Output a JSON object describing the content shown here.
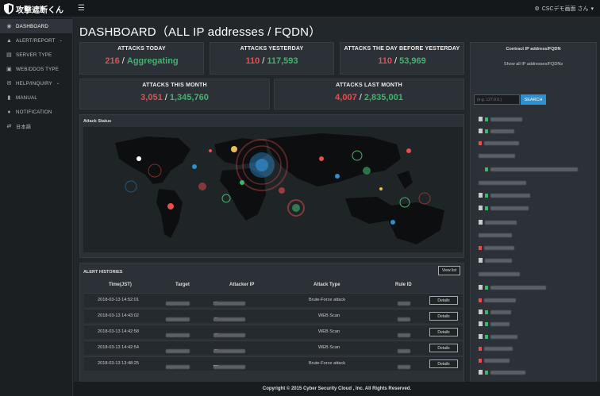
{
  "app": {
    "logo_text": "攻撃遮断くん",
    "user": "CSCデモ画面 さん"
  },
  "sidebar": {
    "items": [
      {
        "label": "DASHBOARD",
        "icon": "dashboard-icon"
      },
      {
        "label": "ALERT/REPORT",
        "icon": "alert-icon"
      },
      {
        "label": "SERVER TYPE",
        "icon": "server-icon"
      },
      {
        "label": "WEB/DDOS TYPE",
        "icon": "web-icon"
      },
      {
        "label": "HELP/INQUIRY",
        "icon": "help-icon"
      },
      {
        "label": "MANUAL",
        "icon": "manual-icon"
      },
      {
        "label": "NOTIFICATION",
        "icon": "bell-icon"
      },
      {
        "label": "日本語",
        "icon": "language-icon"
      }
    ]
  },
  "page_title": "DASHBOARD（ALL IP addresses / FQDN）",
  "stats": {
    "today": {
      "label": "ATTACKS TODAY",
      "a": "216",
      "b": "Aggregating"
    },
    "yesterday": {
      "label": "ATTACKS YESTERDAY",
      "a": "110",
      "b": "117,593"
    },
    "day_before": {
      "label": "ATTACKS THE DAY BEFORE YESTERDAY",
      "a": "110",
      "b": "53,969"
    },
    "this_month": {
      "label": "ATTACKS THIS MONTH",
      "a": "3,051",
      "b": "1,345,760"
    },
    "last_month": {
      "label": "ATTACKS LAST MONTH",
      "a": "4,007",
      "b": "2,835,001"
    }
  },
  "map": {
    "title": "Attack Status"
  },
  "alerts": {
    "title": "ALERT HISTORIES",
    "view_list": "View list",
    "columns": [
      "Time(JST)",
      "Target",
      "Attacker IP",
      "Attack Type",
      "Rule ID"
    ],
    "rows": [
      {
        "time": "2018-03-13 14:52:01",
        "target": "any",
        "type": "Brute-Force attack",
        "details": "Details"
      },
      {
        "time": "2018-03-13 14:43:02",
        "target": "any",
        "type": "WEB Scan",
        "details": "Details"
      },
      {
        "time": "2018-03-13 14:42:58",
        "target": "any",
        "type": "WEB Scan",
        "details": "Details"
      },
      {
        "time": "2018-03-13 14:42:54",
        "target": "any",
        "type": "WEB Scan",
        "details": "Details"
      },
      {
        "time": "2018-03-13 13:48:25",
        "target": "any",
        "type": "Brute-Force attack",
        "details": "Details"
      }
    ]
  },
  "contract": {
    "title": "Contract IP address/FQDN",
    "show_all": "Show all IP addresses/FQDNs",
    "placeholder": "(e.g. 127.0.0.)",
    "search": "SEARCH"
  },
  "footer": "Copyright © 2015 Cyber Security Cloud , Inc. All Rights Reserved.",
  "colors": {
    "red": "#e84e4e",
    "green": "#3fb56c",
    "accent": "#2f8fcf"
  }
}
